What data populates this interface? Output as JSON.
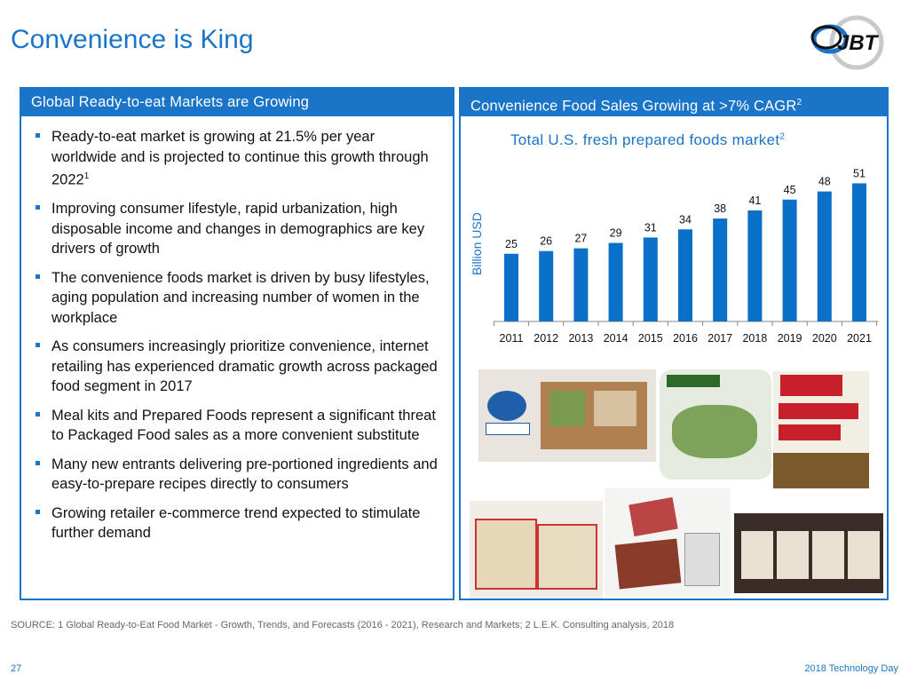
{
  "title": "Convenience is King",
  "logo_text": "JBT",
  "left_panel": {
    "header": "Global Ready-to-eat Markets are Growing",
    "bullets": [
      {
        "text": "Ready-to-eat market is growing at 21.5% per year worldwide and is projected to continue this growth through 2022",
        "sup": "1"
      },
      {
        "text": "Improving consumer lifestyle, rapid urbanization, high disposable income and changes in demographics are key drivers of growth",
        "sup": ""
      },
      {
        "text": "The convenience foods market is driven by busy lifestyles, aging population and increasing number of women in the workplace",
        "sup": ""
      },
      {
        "text": "As consumers increasingly prioritize convenience, internet retailing has experienced dramatic growth across packaged food segment in 2017",
        "sup": ""
      },
      {
        "text": "Meal kits and Prepared Foods represent a significant threat to Packaged Food sales as a more convenient substitute",
        "sup": ""
      },
      {
        "text": "Many new entrants delivering pre-portioned ingredients and easy-to-prepare recipes directly to consumers",
        "sup": ""
      },
      {
        "text": "Growing retailer e-commerce trend expected to stimulate further demand",
        "sup": ""
      }
    ]
  },
  "right_panel": {
    "header": "Convenience Food Sales Growing at >7% CAGR",
    "header_sup": "2"
  },
  "photos": [
    "Kroger Prep+Pared New Markets",
    "Dole Mini-Kit Four Cheese Cesar",
    "Campbell's Ready Meals",
    "Quinoa meal packages",
    "Lunch meal trays",
    "Prepared meal packages"
  ],
  "chart_data": {
    "type": "bar",
    "title": "Total U.S. fresh prepared foods market",
    "title_sup": "2",
    "ylabel": "Billion USD",
    "xlabel": "",
    "categories": [
      "2011",
      "2012",
      "2013",
      "2014",
      "2015",
      "2016",
      "2017",
      "2018",
      "2019",
      "2020",
      "2021"
    ],
    "values": [
      25,
      26,
      27,
      29,
      31,
      34,
      38,
      41,
      45,
      48,
      51
    ],
    "ylim": [
      0,
      55
    ],
    "grid": false,
    "color": "#0a70c8"
  },
  "source": "SOURCE: 1 Global Ready-to-Eat Food Market - Growth, Trends, and Forecasts (2016 - 2021), Research and Markets;  2 L.E.K. Consulting analysis, 2018",
  "page_number": "27",
  "footer": "2018 Technology Day"
}
